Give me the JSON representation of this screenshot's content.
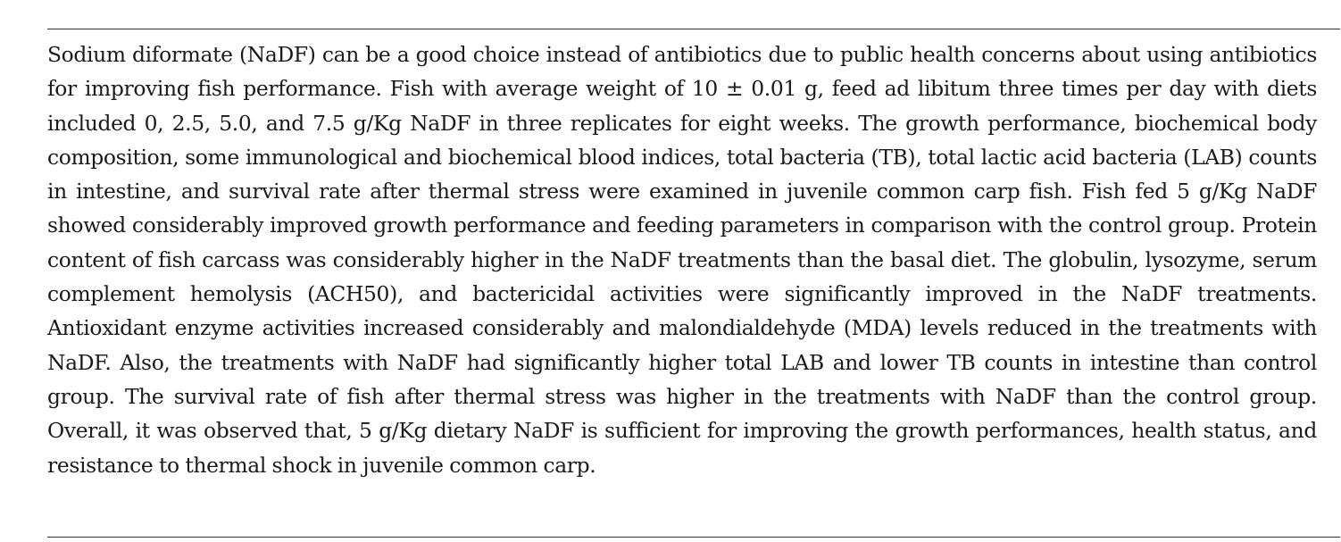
{
  "abstract": {
    "text": "Sodium diformate (NaDF) can be a good choice instead of antibiotics due to public health concerns about using antibiotics for improving fish performance. Fish with average weight of 10 ± 0.01 g, feed ad libitum three times per day with diets included 0, 2.5, 5.0, and 7.5 g/Kg NaDF in three replicates for eight weeks. The growth performance, biochemical body composition, some immunological and biochemical blood indices, total bacteria (TB), total lactic acid bacteria (LAB) counts in intestine, and survival rate after thermal stress were examined in juvenile common carp fish. Fish fed 5 g/Kg NaDF showed considerably improved growth performance and feeding parameters in comparison with the control group. Protein content of fish carcass was considerably higher in the NaDF treatments than the basal diet. The globulin, lysozyme, serum complement hemolysis (ACH50), and bactericidal activities were significantly improved in the NaDF treatments. Antioxidant enzyme activities increased considerably and malondialdehyde (MDA) levels reduced in the treatments with NaDF. Also, the treatments with NaDF had significantly higher total LAB and lower TB counts in intestine than control group. The survival rate of fish after thermal stress was higher in the treatments with NaDF than the control group. Overall, it was observed that, 5 g/Kg dietary NaDF is sufficient for improving the growth performances, health status, and resistance to thermal shock in juvenile common carp."
  },
  "colors": {
    "text": "#1a1a1a",
    "rule": "#333333",
    "background": "#ffffff"
  }
}
